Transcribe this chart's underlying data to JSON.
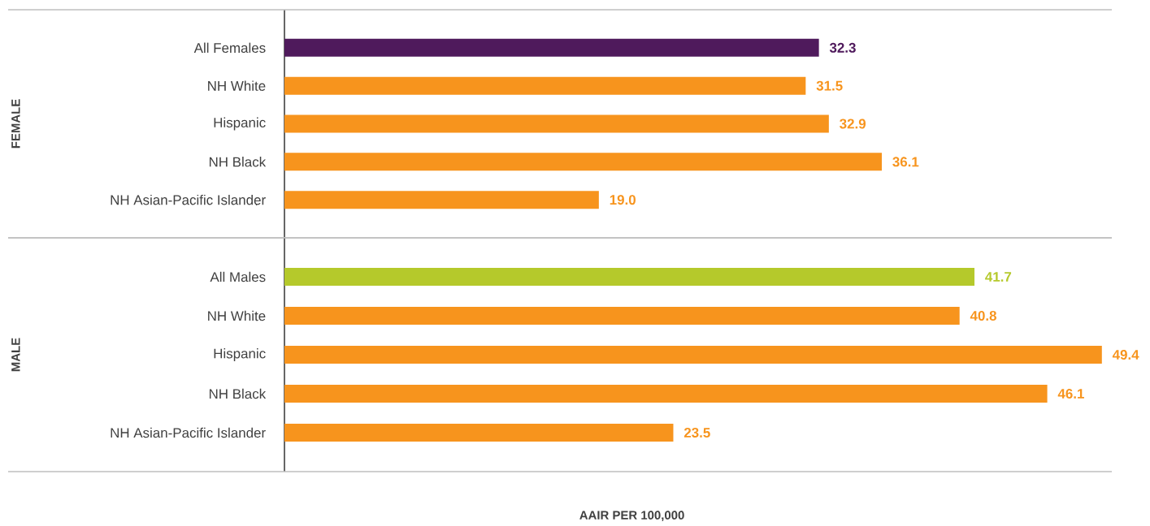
{
  "chart_data": [
    {
      "type": "bar",
      "orientation": "horizontal",
      "ylabel": "FEMALE",
      "categories": [
        "All Females",
        "NH White",
        "Hispanic",
        "NH Black",
        "NH Asian-Pacific Islander"
      ],
      "values": [
        32.3,
        31.5,
        32.9,
        36.1,
        19.0
      ],
      "value_labels": [
        "32.3",
        "31.5",
        "32.9",
        "36.1",
        "19.0"
      ],
      "colors": [
        "#4f1a5c",
        "#f7941d",
        "#f7941d",
        "#f7941d",
        "#f7941d"
      ],
      "xlim": [
        0,
        50
      ],
      "tick_labels": "y"
    },
    {
      "type": "bar",
      "orientation": "horizontal",
      "ylabel": "MALE",
      "xlabel": "AAIR PER 100,000",
      "categories": [
        "All Males",
        "NH White",
        "Hispanic",
        "NH Black",
        "NH Asian-Pacific Islander"
      ],
      "values": [
        41.7,
        40.8,
        49.4,
        46.1,
        23.5
      ],
      "value_labels": [
        "41.7",
        "40.8",
        "49.4",
        "46.1",
        "23.5"
      ],
      "colors": [
        "#b5c92b",
        "#f7941d",
        "#f7941d",
        "#f7941d",
        "#f7941d"
      ],
      "xlim": [
        0,
        50
      ],
      "tick_labels": "y"
    }
  ]
}
